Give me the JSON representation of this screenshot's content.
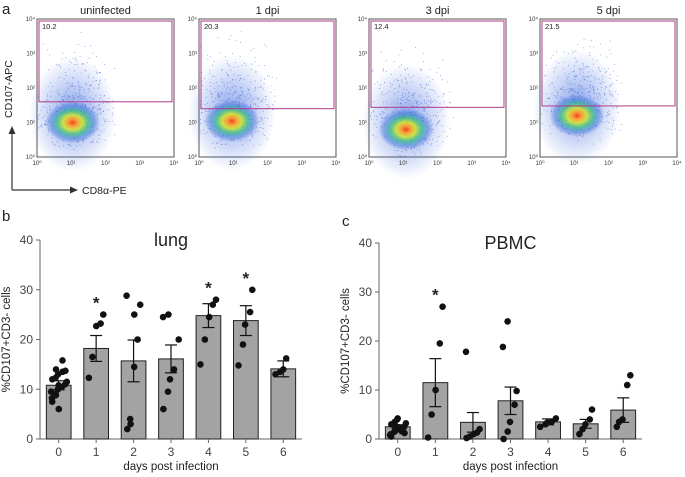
{
  "panel_labels": {
    "a": "a",
    "b": "b",
    "c": "c"
  },
  "flow": {
    "y_axis_label": "CD107-APC",
    "x_axis_label": "CD8α-PE",
    "tick_labels": [
      "10⁰",
      "10¹",
      "10²",
      "10³",
      "10⁴"
    ],
    "gate_color": "#b03a8a",
    "plots": [
      {
        "title": "uninfected",
        "gate_percent": "10.2"
      },
      {
        "title": "1 dpi",
        "gate_percent": "20.3"
      },
      {
        "title": "3 dpi",
        "gate_percent": "12.4"
      },
      {
        "title": "5 dpi",
        "gate_percent": "21.5"
      }
    ]
  },
  "chart_data": [
    {
      "type": "bar",
      "title": "lung",
      "xlabel": "days post infection",
      "ylabel": "%CD107+CD3- cells",
      "ylim": [
        0,
        40
      ],
      "yticks": [
        0,
        10,
        20,
        30,
        40
      ],
      "categories": [
        "0",
        "1",
        "2",
        "3",
        "4",
        "5",
        "6"
      ],
      "values": [
        10.8,
        18.2,
        15.7,
        16.1,
        24.8,
        23.8,
        14.1
      ],
      "sem": [
        0.9,
        2.6,
        4.2,
        2.8,
        2.4,
        3.0,
        1.6
      ],
      "significance": [
        "",
        "*",
        "",
        "",
        "*",
        "*",
        ""
      ],
      "points": [
        [
          8.2,
          9.0,
          10.0,
          10.5,
          11.0,
          12.0,
          12.3,
          13.0,
          13.5,
          13.7,
          9.5,
          8.8,
          6.0,
          15.8,
          11.5,
          7.5,
          14.0,
          10.8
        ],
        [
          12.3,
          16.5,
          22.7,
          23.2,
          25.0
        ],
        [
          2.0,
          3.0,
          14.5,
          20.0,
          27.0,
          28.8,
          4.0,
          25.0
        ],
        [
          6.0,
          9.5,
          12.0,
          14.0,
          20.0,
          24.5,
          25.0
        ],
        [
          15.0,
          20.0,
          24.5,
          27.0,
          28.0
        ],
        [
          14.8,
          19.0,
          23.0,
          25.5,
          30.0
        ],
        [
          13.0,
          13.5,
          14.0,
          16.2
        ]
      ]
    },
    {
      "type": "bar",
      "title": "PBMC",
      "xlabel": "days post infection",
      "ylabel": "%CD107+CD3- cells",
      "ylim": [
        0,
        40
      ],
      "yticks": [
        0,
        10,
        20,
        30,
        40
      ],
      "categories": [
        "0",
        "1",
        "2",
        "3",
        "4",
        "5",
        "6"
      ],
      "values": [
        2.5,
        11.5,
        3.4,
        7.8,
        3.5,
        3.1,
        5.9
      ],
      "sem": [
        0.4,
        4.9,
        2.0,
        2.8,
        0.6,
        0.9,
        2.5
      ],
      "significance": [
        "",
        "*",
        "",
        "",
        "",
        "",
        ""
      ],
      "points": [
        [
          1.0,
          1.5,
          2.0,
          2.2,
          2.5,
          3.0,
          3.5,
          4.0,
          1.8,
          1.2,
          0.8,
          2.8,
          2.4,
          1.6,
          3.2,
          0.5,
          2.0,
          4.2
        ],
        [
          0.3,
          5.0,
          10.0,
          19.5,
          27.0
        ],
        [
          0.2,
          0.5,
          1.0,
          1.3,
          2.0,
          17.8
        ],
        [
          0.0,
          1.5,
          3.5,
          7.0,
          9.8,
          18.8,
          24.0
        ],
        [
          2.5,
          3.0,
          3.3,
          3.5,
          4.2
        ],
        [
          1.0,
          2.0,
          3.0,
          4.0,
          6.0
        ],
        [
          2.5,
          3.5,
          4.0,
          11.0,
          13.0
        ]
      ]
    }
  ]
}
